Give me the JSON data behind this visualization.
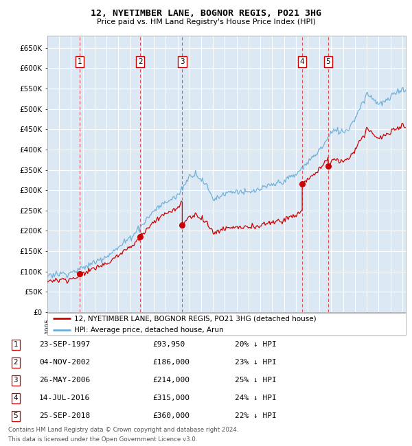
{
  "title": "12, NYETIMBER LANE, BOGNOR REGIS, PO21 3HG",
  "subtitle": "Price paid vs. HM Land Registry's House Price Index (HPI)",
  "xlim_start": 1995.0,
  "xlim_end": 2025.3,
  "ylim_min": 0,
  "ylim_max": 680000,
  "yticks": [
    0,
    50000,
    100000,
    150000,
    200000,
    250000,
    300000,
    350000,
    400000,
    450000,
    500000,
    550000,
    600000,
    650000
  ],
  "ytick_labels": [
    "£0",
    "£50K",
    "£100K",
    "£150K",
    "£200K",
    "£250K",
    "£300K",
    "£350K",
    "£400K",
    "£450K",
    "£500K",
    "£550K",
    "£600K",
    "£650K"
  ],
  "background_color": "#dce9f5",
  "grid_color": "#ffffff",
  "hpi_line_color": "#6baed6",
  "price_line_color": "#cc0000",
  "sale_marker_color": "#cc0000",
  "dashed_line_color": "#e05050",
  "transactions": [
    {
      "num": 1,
      "date_label": "23-SEP-1997",
      "date_x": 1997.73,
      "price": 93950,
      "pct": "20%"
    },
    {
      "num": 2,
      "date_label": "04-NOV-2002",
      "date_x": 2002.84,
      "price": 186000,
      "pct": "23%"
    },
    {
      "num": 3,
      "date_label": "26-MAY-2006",
      "date_x": 2006.4,
      "price": 214000,
      "pct": "25%"
    },
    {
      "num": 4,
      "date_label": "14-JUL-2016",
      "date_x": 2016.54,
      "price": 315000,
      "pct": "24%"
    },
    {
      "num": 5,
      "date_label": "25-SEP-2018",
      "date_x": 2018.73,
      "price": 360000,
      "pct": "22%"
    }
  ],
  "legend_line1": "12, NYETIMBER LANE, BOGNOR REGIS, PO21 3HG (detached house)",
  "legend_line2": "HPI: Average price, detached house, Arun",
  "footnote1": "Contains HM Land Registry data © Crown copyright and database right 2024.",
  "footnote2": "This data is licensed under the Open Government Licence v3.0."
}
